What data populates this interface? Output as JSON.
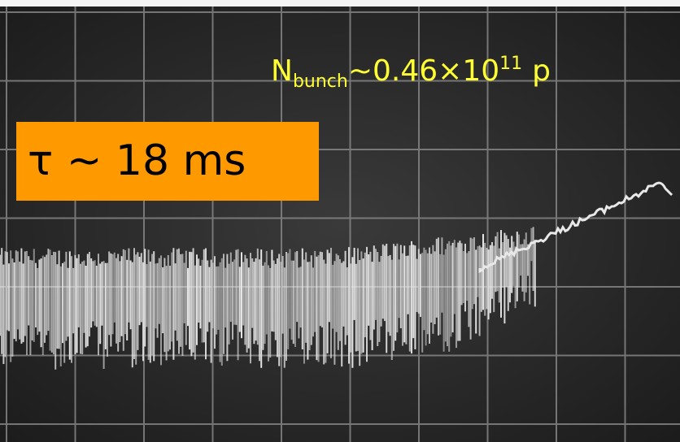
{
  "annotations": {
    "beam_intensity": {
      "symbol": "N",
      "subscript": "bunch",
      "value": "~0.46×10",
      "exponent": "11",
      "unit": "p"
    },
    "time_constant": "τ ~ 18 ms"
  }
}
